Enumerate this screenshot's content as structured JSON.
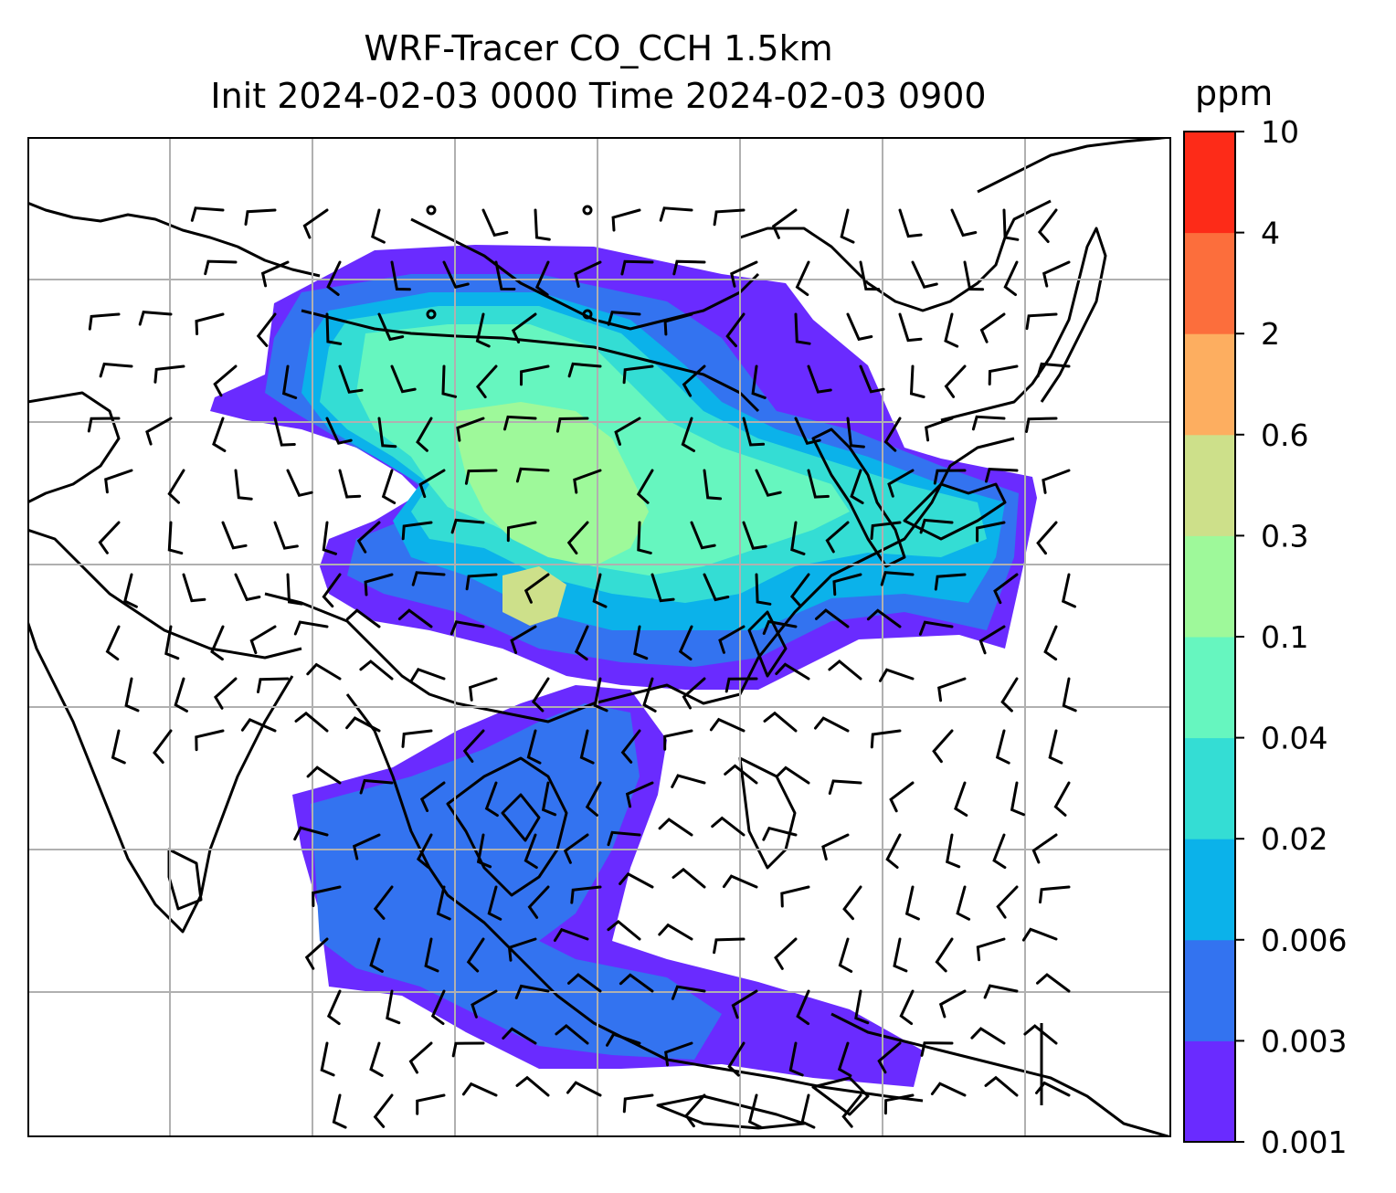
{
  "title": {
    "line1": "WRF-Tracer CO_CCH 1.5km",
    "line2": "Init 2024-02-03 0000 Time 2024-02-03 0900"
  },
  "colorbar": {
    "unit": "ppm",
    "levels": [
      "0.001",
      "0.003",
      "0.006",
      "0.02",
      "0.04",
      "0.1",
      "0.3",
      "0.6",
      "2",
      "4",
      "10"
    ],
    "colors": [
      "#6a2bff",
      "#3373f0",
      "#0bb2ea",
      "#34ddd4",
      "#66f6bf",
      "#9ef99a",
      "#cde08a",
      "#fdae60",
      "#fc6e3c",
      "#fd2b18"
    ]
  },
  "map": {
    "gridlines": true,
    "coastlines": true,
    "wind_barbs": true
  }
}
